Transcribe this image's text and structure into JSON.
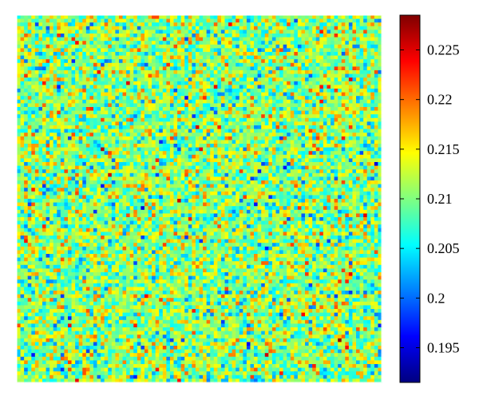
{
  "chart_data": {
    "type": "heatmap",
    "rows": 100,
    "cols": 100,
    "distribution": "random noise",
    "value_range": [
      0.1915,
      0.2285
    ],
    "typical_mean": 0.2105,
    "typical_spread": 0.0045,
    "colormap": "jet",
    "colormap_stops": [
      "#00008f",
      "#0000ff",
      "#00ffff",
      "#ffff00",
      "#ff0000",
      "#800000"
    ],
    "colorbar": {
      "position": "right",
      "ticks": [
        {
          "value": 0.195,
          "label": "0.195"
        },
        {
          "value": 0.2,
          "label": "0.2"
        },
        {
          "value": 0.205,
          "label": "0.205"
        },
        {
          "value": 0.21,
          "label": "0.21"
        },
        {
          "value": 0.215,
          "label": "0.215"
        },
        {
          "value": 0.22,
          "label": "0.22"
        },
        {
          "value": 0.225,
          "label": "0.225"
        }
      ]
    },
    "xlabel": "",
    "ylabel": "",
    "title": "",
    "grid": false
  }
}
